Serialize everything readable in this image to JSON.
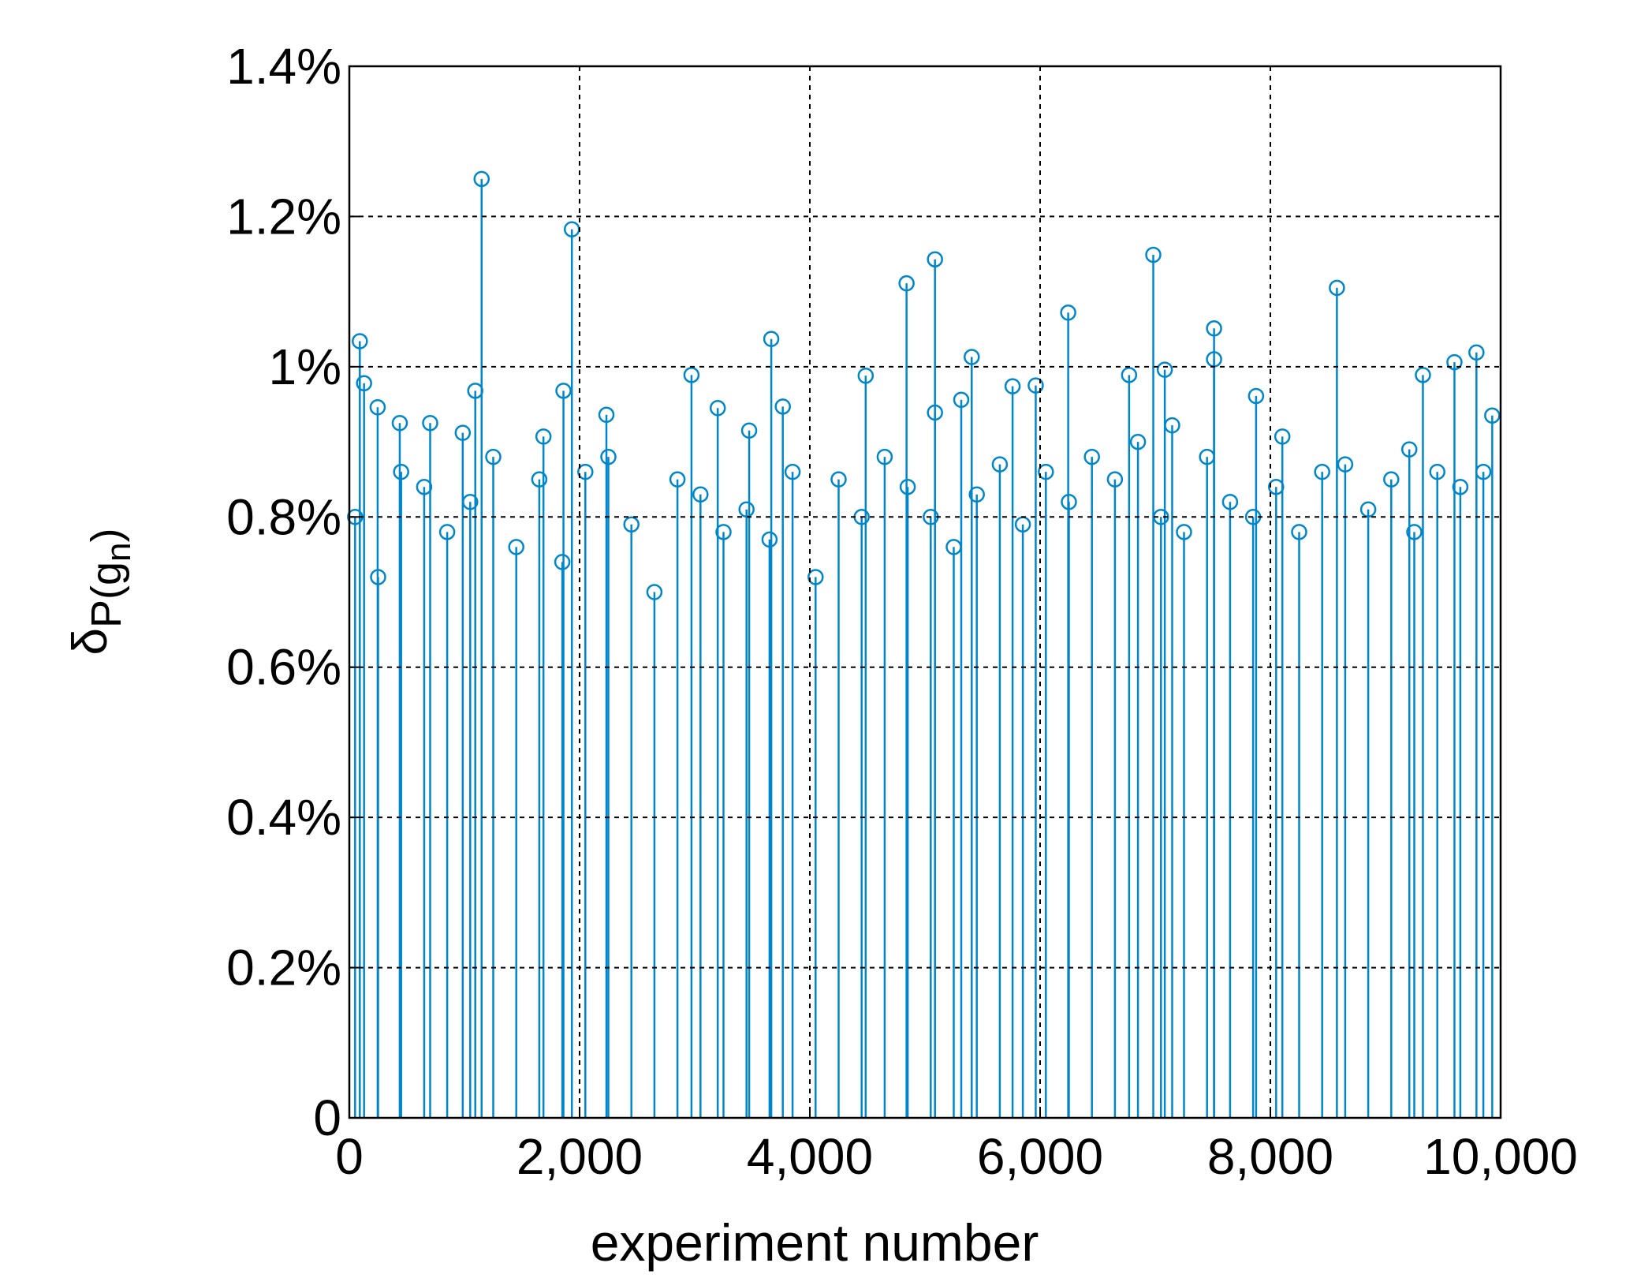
{
  "chart_data": {
    "type": "stem",
    "xlabel": "experiment number",
    "ylabel_parts": [
      "δ",
      "P(g",
      "n",
      ")"
    ],
    "color": "#0086cb",
    "grid": true,
    "xlim": [
      0,
      10000
    ],
    "xticks": [
      0,
      {
        "value": 2000,
        "label": "2,000"
      },
      {
        "value": 4000,
        "label": "4,000"
      },
      {
        "value": 6000,
        "label": "6,000"
      },
      {
        "value": 8000,
        "label": "8,000"
      },
      {
        "value": 10000,
        "label": "10,000"
      }
    ],
    "ylim": [
      0,
      1.4
    ],
    "yticks": [
      0,
      {
        "value": 0.2,
        "label": "0.2%"
      },
      {
        "value": 0.4,
        "label": "0.4%"
      },
      {
        "value": 0.6,
        "label": "0.6%"
      },
      {
        "value": 0.8,
        "label": "0.8%"
      },
      {
        "value": 1,
        "label": "1%"
      },
      {
        "value": 1.2,
        "label": "1.2%"
      },
      {
        "value": 1.4,
        "label": "1.4%"
      }
    ],
    "x": [
      91,
      128,
      246,
      1149,
      1094,
      1933,
      1860,
      2233,
      2972,
      3665,
      3765,
      4485,
      4840,
      5087,
      5406,
      6244,
      6983,
      7083,
      7511,
      7511,
      7876,
      8578,
      9325,
      9599,
      9790,
      9927,
      6773,
      5761,
      5962,
      702,
      438,
      985,
      1686,
      3473,
      3200,
      5087,
      5315,
      7147,
      8104,
      9207,
      50,
      250,
      450,
      650,
      850,
      1050,
      1250,
      1450,
      1650,
      1850,
      2050,
      2250,
      2450,
      2650,
      2850,
      3050,
      3250,
      3450,
      3650,
      3850,
      4050,
      4250,
      4450,
      4650,
      4850,
      5050,
      5250,
      5450,
      5650,
      5850,
      6050,
      6250,
      6450,
      6650,
      6850,
      7050,
      7250,
      7450,
      7650,
      7850,
      8050,
      8250,
      8450,
      8650,
      8850,
      9050,
      9250,
      9450,
      9650,
      9850
    ],
    "values": [
      1.034,
      0.978,
      0.946,
      1.25,
      0.968,
      1.183,
      0.968,
      0.936,
      0.989,
      1.037,
      0.947,
      0.988,
      1.111,
      1.143,
      1.013,
      1.072,
      1.149,
      0.996,
      1.051,
      1.01,
      0.961,
      1.105,
      0.989,
      1.006,
      1.019,
      0.935,
      0.989,
      0.974,
      0.975,
      0.925,
      0.925,
      0.912,
      0.907,
      0.915,
      0.945,
      0.939,
      0.956,
      0.922,
      0.907,
      0.89,
      0.8,
      0.72,
      0.86,
      0.84,
      0.78,
      0.82,
      0.88,
      0.76,
      0.85,
      0.74,
      0.86,
      0.88,
      0.79,
      0.7,
      0.85,
      0.83,
      0.78,
      0.81,
      0.77,
      0.86,
      0.72,
      0.85,
      0.8,
      0.88,
      0.84,
      0.8,
      0.76,
      0.83,
      0.87,
      0.79,
      0.86,
      0.82,
      0.88,
      0.85,
      0.9,
      0.8,
      0.78,
      0.88,
      0.82,
      0.8,
      0.84,
      0.78,
      0.86,
      0.87,
      0.81,
      0.85,
      0.78,
      0.86,
      0.84,
      0.86
    ]
  }
}
